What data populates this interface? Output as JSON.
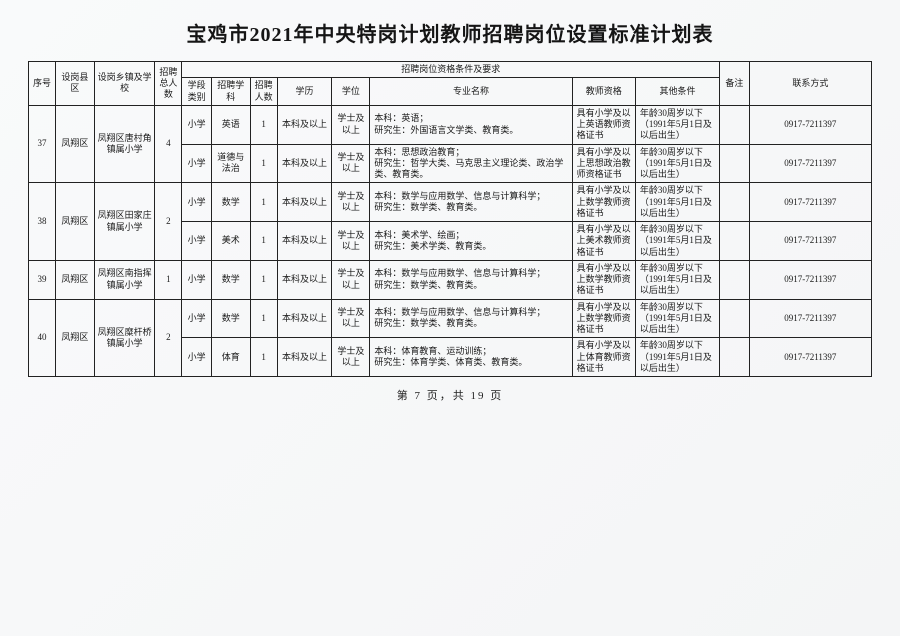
{
  "title": "宝鸡市2021年中央特岗计划教师招聘岗位设置标准计划表",
  "footer": "第 7 页，共 19 页",
  "columns": {
    "c0": "序号",
    "c1": "设岗县区",
    "c2": "设岗乡镇及学校",
    "c3": "招聘总人数",
    "groupHeader": "招聘岗位资格条件及要求",
    "c4": "学段类别",
    "c5": "招聘学科",
    "c6": "招聘人数",
    "c7": "学历",
    "c8": "学位",
    "c9": "专业名称",
    "c10": "教师资格",
    "c11": "其他条件",
    "c12": "备注",
    "c13": "联系方式"
  },
  "rows": [
    {
      "idx": "37",
      "county": "凤翔区",
      "school": "凤翔区唐村角镇属小学",
      "total": "4",
      "stage": "小学",
      "subject": "英语",
      "num": "1",
      "edu": "本科及以上",
      "degree": "学士及以上",
      "major": "本科：英语；\n研究生：外国语言文学类、教育类。",
      "cert": "具有小学及以上英语教师资格证书",
      "other": "年龄30周岁以下（1991年5月1日及以后出生）",
      "remark": "",
      "contact": "0917-7211397",
      "schoolSpan": 2
    },
    {
      "stage": "小学",
      "subject": "道德与法治",
      "num": "1",
      "edu": "本科及以上",
      "degree": "学士及以上",
      "major": "本科：思想政治教育；\n研究生：哲学大类、马克思主义理论类、政治学类、教育类。",
      "cert": "具有小学及以上思想政治教师资格证书",
      "other": "年龄30周岁以下（1991年5月1日及以后出生）",
      "remark": "",
      "contact": "0917-7211397"
    },
    {
      "idx": "38",
      "county": "凤翔区",
      "school": "凤翔区田家庄镇属小学",
      "total": "2",
      "stage": "小学",
      "subject": "数学",
      "num": "1",
      "edu": "本科及以上",
      "degree": "学士及以上",
      "major": "本科：数学与应用数学、信息与计算科学；\n研究生：数学类、教育类。",
      "cert": "具有小学及以上数学教师资格证书",
      "other": "年龄30周岁以下（1991年5月1日及以后出生）",
      "remark": "",
      "contact": "0917-7211397",
      "schoolSpan": 2
    },
    {
      "stage": "小学",
      "subject": "美术",
      "num": "1",
      "edu": "本科及以上",
      "degree": "学士及以上",
      "major": "本科：美术学、绘画；\n研究生：美术学类、教育类。",
      "cert": "具有小学及以上美术教师资格证书",
      "other": "年龄30周岁以下（1991年5月1日及以后出生）",
      "remark": "",
      "contact": "0917-7211397"
    },
    {
      "idx": "39",
      "county": "凤翔区",
      "school": "凤翔区南指挥镇属小学",
      "total": "1",
      "stage": "小学",
      "subject": "数学",
      "num": "1",
      "edu": "本科及以上",
      "degree": "学士及以上",
      "major": "本科：数学与应用数学、信息与计算科学；\n研究生：数学类、教育类。",
      "cert": "具有小学及以上数学教师资格证书",
      "other": "年龄30周岁以下（1991年5月1日及以后出生）",
      "remark": "",
      "contact": "0917-7211397",
      "schoolSpan": 1
    },
    {
      "idx": "40",
      "county": "凤翔区",
      "school": "凤翔区糜杆桥镇属小学",
      "total": "2",
      "stage": "小学",
      "subject": "数学",
      "num": "1",
      "edu": "本科及以上",
      "degree": "学士及以上",
      "major": "本科：数学与应用数学、信息与计算科学；\n研究生：数学类、教育类。",
      "cert": "具有小学及以上数学教师资格证书",
      "other": "年龄30周岁以下（1991年5月1日及以后出生）",
      "remark": "",
      "contact": "0917-7211397",
      "schoolSpan": 2
    },
    {
      "stage": "小学",
      "subject": "体育",
      "num": "1",
      "edu": "本科及以上",
      "degree": "学士及以上",
      "major": "本科：体育教育、运动训练；\n研究生：体育学类、体育类、教育类。",
      "cert": "具有小学及以上体育教师资格证书",
      "other": "年龄30周岁以下（1991年5月1日及以后出生）",
      "remark": "",
      "contact": "0917-7211397"
    }
  ],
  "layout": {
    "colWidthsPercent": [
      3.2,
      4.6,
      7.2,
      3.2,
      3.5,
      4.6,
      3.2,
      6.5,
      4.5,
      24.0,
      7.5,
      10.0,
      3.5,
      14.5
    ]
  }
}
